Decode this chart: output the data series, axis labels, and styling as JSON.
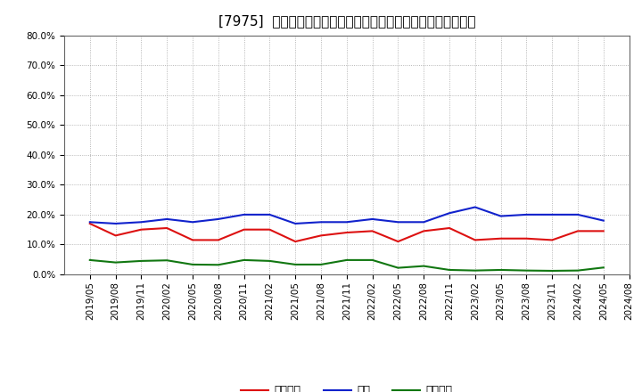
{
  "title": "[7975]  売上債権、在庫、買入債務の総資産に対する比率の推移",
  "x_labels": [
    "2019/05",
    "2019/08",
    "2019/11",
    "2020/02",
    "2020/05",
    "2020/08",
    "2020/11",
    "2021/02",
    "2021/05",
    "2021/08",
    "2021/11",
    "2022/02",
    "2022/05",
    "2022/08",
    "2022/11",
    "2023/02",
    "2023/05",
    "2023/08",
    "2023/11",
    "2024/02",
    "2024/05",
    "2024/08"
  ],
  "receivables": [
    0.17,
    0.13,
    0.15,
    0.155,
    0.115,
    0.115,
    0.15,
    0.15,
    0.11,
    0.13,
    0.14,
    0.145,
    0.11,
    0.145,
    0.155,
    0.115,
    0.12,
    0.12,
    0.115,
    0.145,
    0.145,
    null
  ],
  "inventory": [
    0.175,
    0.17,
    0.175,
    0.185,
    0.175,
    0.185,
    0.2,
    0.2,
    0.17,
    0.175,
    0.175,
    0.185,
    0.175,
    0.175,
    0.205,
    0.225,
    0.195,
    0.2,
    0.2,
    0.2,
    0.18,
    null
  ],
  "payables": [
    0.048,
    0.04,
    0.045,
    0.047,
    0.033,
    0.032,
    0.048,
    0.045,
    0.033,
    0.033,
    0.048,
    0.048,
    0.022,
    0.028,
    0.015,
    0.013,
    0.015,
    0.013,
    0.012,
    0.013,
    0.023,
    null
  ],
  "receivables_color": "#dd1111",
  "inventory_color": "#1122cc",
  "payables_color": "#117711",
  "legend_label_receivables": "売上債権",
  "legend_label_inventory": "在庫",
  "legend_label_payables": "買入債務",
  "ylim": [
    0.0,
    0.8
  ],
  "yticks": [
    0.0,
    0.1,
    0.2,
    0.3,
    0.4,
    0.5,
    0.6,
    0.7,
    0.8
  ],
  "bg_color": "#ffffff",
  "grid_color": "#999999",
  "title_fontsize": 11,
  "tick_fontsize": 7.5,
  "legend_fontsize": 9
}
